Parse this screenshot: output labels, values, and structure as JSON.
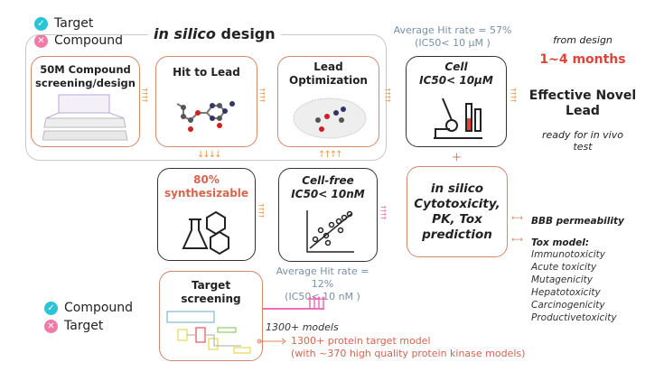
{
  "legend_top": {
    "check_label": "Target",
    "cross_label": "Compound"
  },
  "legend_bottom": {
    "check_label": "Compound",
    "cross_label": "Target"
  },
  "in_silico_title_italic": "in silico",
  "in_silico_title_rest": "design",
  "boxes": {
    "screening": "50M Compound screening/design",
    "hit_to_lead": "Hit to Lead",
    "lead_opt": "Lead Optimization",
    "cell_line1": "Cell",
    "cell_line2": "IC50< 10μM",
    "synth_pct": "80%",
    "synth_label": "synthesizable",
    "cellfree_line1": "Cell-free",
    "cellfree_line2": "IC50< 10nM",
    "tox_pred": "in silico Cytotoxicity, PK, Tox prediction",
    "target_screening": "Target screening"
  },
  "hit_rate_cell": {
    "line1": "Average Hit rate = 57%",
    "line2": "(IC50< 10 μM )"
  },
  "hit_rate_cellfree": {
    "line1": "Average Hit rate = 12%",
    "line2": "(IC50< 10 nM )"
  },
  "result": {
    "from": "from design",
    "duration": "1~4 months",
    "title": "Effective Novel Lead",
    "ready": "ready for in vivo test"
  },
  "plus": "+",
  "tox": {
    "bbb": "BBB permeability",
    "model": "Tox model:",
    "items": [
      "Immunotoxicity",
      "Acute toxicity",
      "Mutagenicity",
      "Hepatotoxicity",
      "Carcinogenicity",
      "Productivetoxicity"
    ]
  },
  "models": {
    "count": "1300+ models",
    "line1": "1300+ protein target model",
    "line2": "(with ~370 high quality protein kinase models)"
  },
  "colors": {
    "salmon": "#d4866f",
    "red": "#e0453a",
    "blue_gray": "#7990a6",
    "pink": "#ee6fb8",
    "check": "#2bc3d6",
    "cross": "#f07aa8"
  }
}
